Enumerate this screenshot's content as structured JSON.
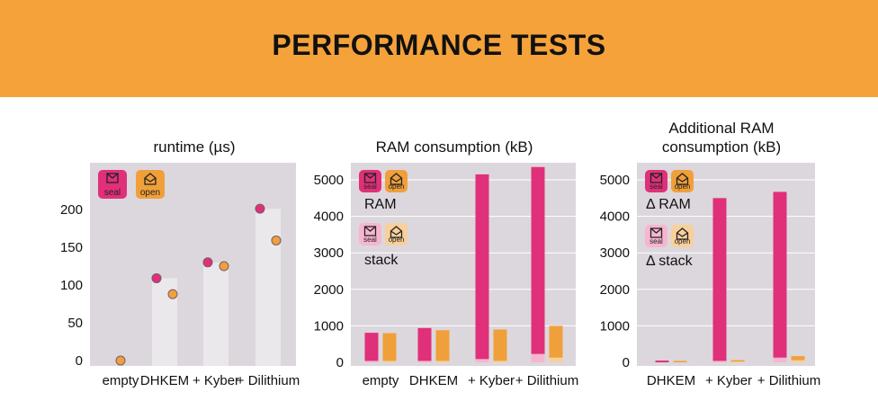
{
  "page": {
    "title": "PERFORMANCE TESTS"
  },
  "colors": {
    "seal": "#e0307a",
    "open": "#f0a03a",
    "seal_light": "#f6b6cf",
    "open_light": "#f8d09a",
    "plot_bg": "#dcd7dc",
    "banner": "#f5a23a"
  },
  "legend": {
    "seal": "seal",
    "open": "open",
    "ram": "RAM",
    "stack": "stack",
    "delta_ram": "Δ RAM",
    "delta_stack": "Δ stack",
    "seal_icon": "envelope-closed-icon",
    "open_icon": "envelope-open-icon"
  },
  "chart_data": [
    {
      "type": "scatter",
      "title": "runtime (µs)",
      "categories": [
        "empty",
        "DHKEM",
        "+ Kyber",
        "+ Dilithium"
      ],
      "ylim": [
        0,
        250
      ],
      "yticks": [
        0,
        50,
        100,
        150,
        200
      ],
      "series": [
        {
          "name": "seal",
          "values": [
            null,
            109,
            130,
            201
          ]
        },
        {
          "name": "open",
          "values": [
            0,
            88,
            125,
            159
          ]
        }
      ],
      "grid": false
    },
    {
      "type": "bar",
      "title": "RAM consumption (kB)",
      "categories": [
        "empty",
        "DHKEM",
        "+ Kyber",
        "+ Dilithium"
      ],
      "ylim": [
        0,
        5400
      ],
      "yticks": [
        0,
        1000,
        2000,
        3000,
        4000,
        5000
      ],
      "series": [
        {
          "name": "seal",
          "values": [
            810,
            940,
            5150,
            5350
          ],
          "stack": [
            40,
            40,
            90,
            230
          ]
        },
        {
          "name": "open",
          "values": [
            800,
            880,
            900,
            1000
          ],
          "stack": [
            40,
            40,
            40,
            130
          ]
        }
      ],
      "grid": true
    },
    {
      "type": "bar",
      "title": "Additional RAM consumption (kB)",
      "categories": [
        "DHKEM",
        "+ Kyber",
        "+ Dilithium"
      ],
      "ylim": [
        0,
        5400
      ],
      "yticks": [
        0,
        1000,
        2000,
        3000,
        4000,
        5000
      ],
      "series": [
        {
          "name": "seal",
          "values": [
            50,
            4500,
            4670
          ],
          "stack": [
            0,
            40,
            130
          ]
        },
        {
          "name": "open",
          "values": [
            40,
            60,
            170
          ],
          "stack": [
            0,
            20,
            60
          ]
        }
      ],
      "grid": true
    }
  ]
}
